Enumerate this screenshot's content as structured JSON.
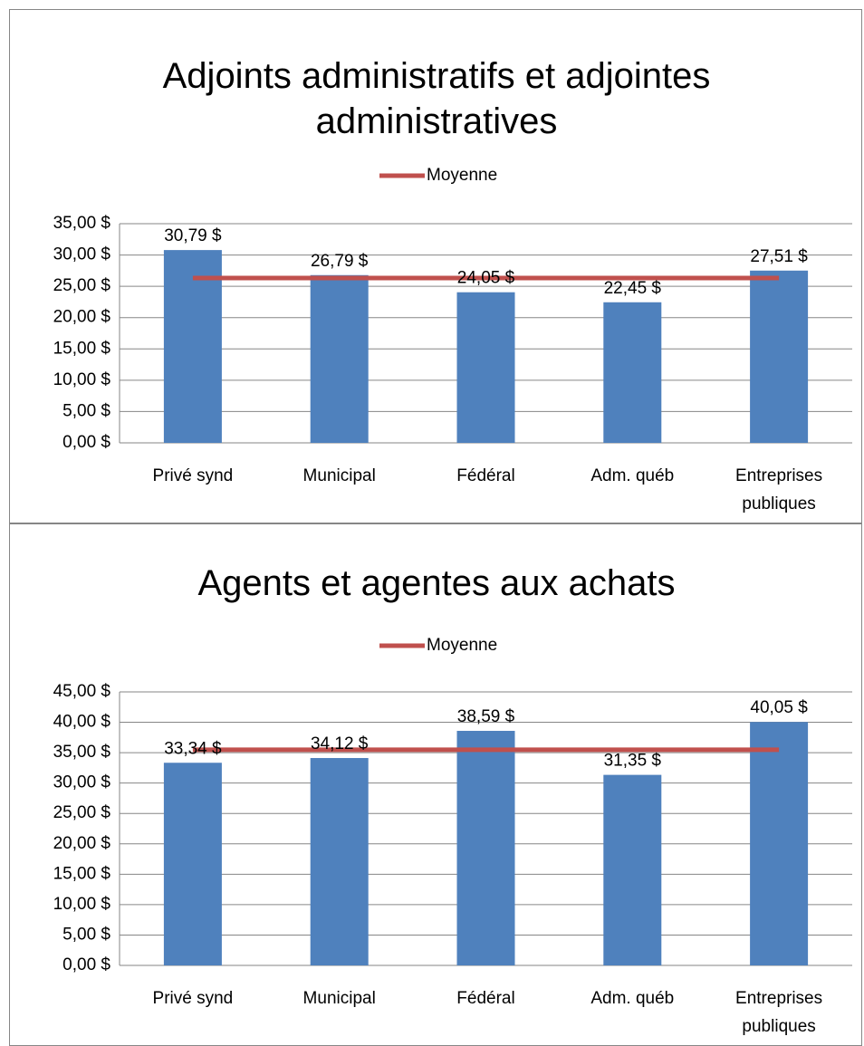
{
  "chart_data": [
    {
      "type": "bar",
      "title": "Adjoints administratifs et adjointes administratives",
      "categories": [
        "Privé synd",
        "Municipal",
        "Fédéral",
        "Adm. québ",
        "Entreprises publiques"
      ],
      "series": [
        {
          "color": "#4f81bd",
          "values": [
            30.79,
            26.79,
            24.05,
            22.45,
            27.51
          ],
          "value_labels": [
            "30,79 $",
            "26,79 $",
            "24,05 $",
            "22,45 $",
            "27,51 $"
          ]
        },
        {
          "name": "Moyenne",
          "type": "line",
          "color": "#c0504d",
          "values": [
            26.32,
            26.32,
            26.32,
            26.32,
            26.32
          ]
        }
      ],
      "ylim": [
        0,
        35
      ],
      "yticks": [
        {
          "value": 0,
          "label": "0,00 $"
        },
        {
          "value": 5,
          "label": "5,00 $"
        },
        {
          "value": 10,
          "label": "10,00 $"
        },
        {
          "value": 15,
          "label": "15,00 $"
        },
        {
          "value": 20,
          "label": "20,00 $"
        },
        {
          "value": 25,
          "label": "25,00 $"
        },
        {
          "value": 30,
          "label": "30,00 $"
        },
        {
          "value": 35,
          "label": "35,00 $"
        }
      ],
      "grid": true,
      "legend": "top"
    },
    {
      "type": "bar",
      "title": "Agents et agentes aux achats",
      "categories": [
        "Privé synd",
        "Municipal",
        "Fédéral",
        "Adm. québ",
        "Entreprises publiques"
      ],
      "series": [
        {
          "color": "#4f81bd",
          "values": [
            33.34,
            34.12,
            38.59,
            31.35,
            40.05
          ],
          "value_labels": [
            "33,34 $",
            "34,12 $",
            "38,59 $",
            "31,35 $",
            "40,05 $"
          ]
        },
        {
          "name": "Moyenne",
          "type": "line",
          "color": "#c0504d",
          "values": [
            35.49,
            35.49,
            35.49,
            35.49,
            35.49
          ]
        }
      ],
      "ylim": [
        0,
        45
      ],
      "yticks": [
        {
          "value": 0,
          "label": "0,00 $"
        },
        {
          "value": 5,
          "label": "5,00 $"
        },
        {
          "value": 10,
          "label": "10,00 $"
        },
        {
          "value": 15,
          "label": "15,00 $"
        },
        {
          "value": 20,
          "label": "20,00 $"
        },
        {
          "value": 25,
          "label": "25,00 $"
        },
        {
          "value": 30,
          "label": "30,00 $"
        },
        {
          "value": 35,
          "label": "35,00 $"
        },
        {
          "value": 40,
          "label": "40,00 $"
        },
        {
          "value": 45,
          "label": "45,00 $"
        }
      ],
      "grid": true,
      "legend": "top"
    }
  ]
}
